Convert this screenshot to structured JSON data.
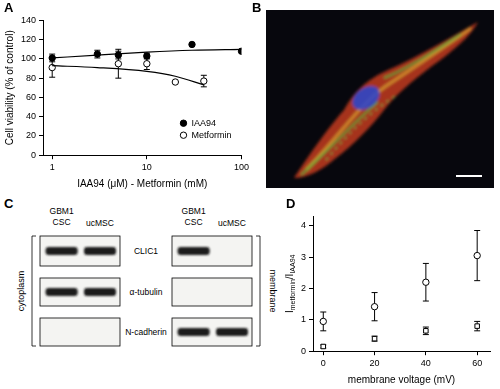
{
  "chart_data": [
    {
      "type": "scatter",
      "title": "A",
      "xlabel": "IAA94 (μM) - Metformin (mM)",
      "ylabel": "Cell viability (% of control)",
      "log": "x",
      "xlim": [
        0.8,
        100
      ],
      "xticks": [
        1,
        10,
        100
      ],
      "ylim": [
        0,
        140
      ],
      "yticks": [
        0,
        20,
        40,
        60,
        80,
        100,
        120,
        140
      ],
      "grid": false,
      "legend": "lower right",
      "series": [
        {
          "name": "IAA94",
          "color": "#000000",
          "marker": "circle",
          "x": [
            1,
            3,
            5,
            10,
            30,
            100
          ],
          "values": [
            101,
            105,
            104,
            103,
            115,
            108
          ],
          "err": [
            4,
            4,
            4,
            3,
            null,
            null
          ],
          "fit": {
            "x": [
              1,
              3,
              10,
              30,
              100
            ],
            "values": [
              101,
              104,
              107,
              109,
              110
            ]
          }
        },
        {
          "name": "Metformin",
          "color": "#000000",
          "marker": "open_circle",
          "x": [
            1,
            5,
            10,
            20,
            40
          ],
          "values": [
            91,
            95,
            95,
            76,
            77
          ],
          "err": [
            10,
            15,
            6,
            null,
            6
          ],
          "fit": {
            "x": [
              1,
              3,
              10,
              20,
              40
            ],
            "values": [
              93,
              91,
              87,
              82,
              73
            ]
          }
        }
      ]
    },
    {
      "type": "scatter",
      "title": "D",
      "xlabel": "membrane voltage (mV)",
      "ylabel": [
        {
          "text": "I"
        },
        {
          "text": "metformin",
          "sub": true
        },
        {
          "text": "/I"
        },
        {
          "text": "IAA94",
          "sub": true
        }
      ],
      "xlim": [
        -4,
        65
      ],
      "xticks": [
        0,
        20,
        40,
        60
      ],
      "ylim": [
        0,
        4.3
      ],
      "yticks": [
        0,
        1,
        2,
        3,
        4
      ],
      "grid": false,
      "x": [
        0,
        20,
        40,
        60
      ],
      "series": [
        {
          "color": "#000000",
          "marker": "open_circle",
          "values": [
            0.95,
            1.42,
            2.2,
            3.05
          ],
          "err": [
            0.3,
            0.45,
            0.6,
            0.8
          ]
        },
        {
          "color": "#000000",
          "marker": "open_square",
          "values": [
            0.15,
            0.4,
            0.65,
            0.8
          ],
          "err": [
            0.05,
            0.08,
            0.12,
            0.15
          ]
        }
      ]
    }
  ],
  "panel_b": {
    "label": "B"
  },
  "panel_c": {
    "label": "C",
    "rows": [
      "CLIC1",
      "α-tubulin",
      "N-cadherin"
    ],
    "blots": [
      {
        "fraction": "cytoplasm",
        "lanes": [
          "GBM1 CSC",
          "ucMSC"
        ],
        "bands": [
          [
            true,
            true
          ],
          [
            true,
            true
          ],
          [
            false,
            false
          ]
        ]
      },
      {
        "fraction": "membrane",
        "lanes": [
          "GBM1 CSC",
          "ucMSC"
        ],
        "bands": [
          [
            true,
            false
          ],
          [
            false,
            false
          ],
          [
            true,
            true
          ]
        ]
      }
    ]
  }
}
